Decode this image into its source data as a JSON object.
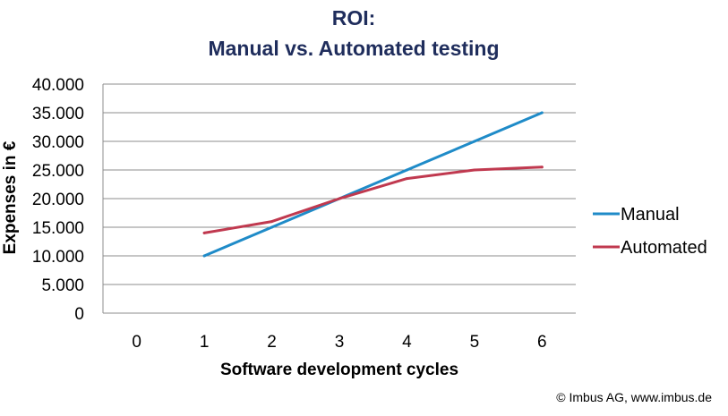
{
  "chart_data": {
    "type": "line",
    "title": [
      "ROI:",
      "Manual vs. Automated testing"
    ],
    "xlabel": "Software development cycles",
    "ylabel": "Expenses in €",
    "categories": [
      "0",
      "1",
      "2",
      "3",
      "4",
      "5",
      "6"
    ],
    "ylim": [
      0,
      40000
    ],
    "yticks": [
      0,
      5000,
      10000,
      15000,
      20000,
      25000,
      30000,
      35000,
      40000
    ],
    "ytick_labels": [
      "0",
      "5.000",
      "10.000",
      "15.000",
      "20.000",
      "25.000",
      "30.000",
      "35.000",
      "40.000"
    ],
    "grid": true,
    "legend_position": "right",
    "series": [
      {
        "name": "Manual",
        "color": "#1f8bc8",
        "x": [
          1,
          2,
          3,
          4,
          5,
          6
        ],
        "values": [
          10000,
          15000,
          20000,
          25000,
          30000,
          35000
        ]
      },
      {
        "name": "Automated",
        "color": "#c0394f",
        "x": [
          1,
          2,
          3,
          4,
          5,
          6
        ],
        "values": [
          14000,
          16000,
          20000,
          23500,
          25000,
          25500
        ]
      }
    ]
  },
  "copyright": "© Imbus AG, www.imbus.de"
}
